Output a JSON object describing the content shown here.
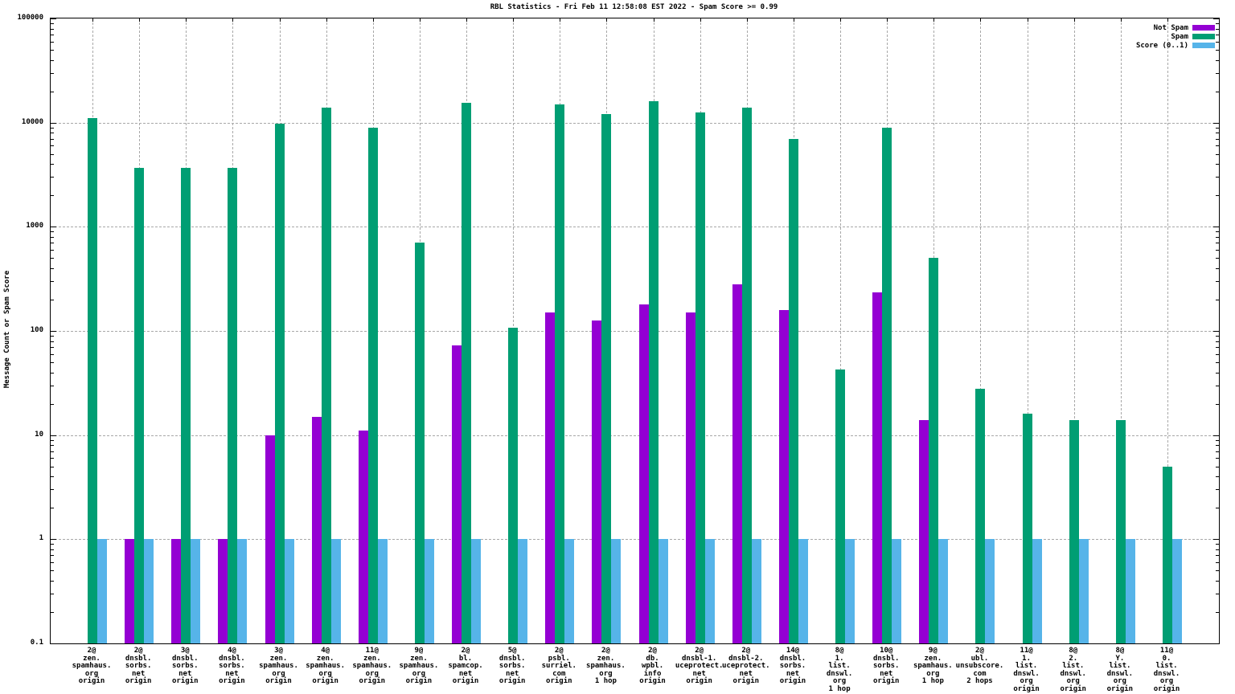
{
  "title": "RBL Statistics - Fri Feb 11 12:58:08 EST 2022 - Spam Score >= 0.99",
  "legend": [
    {
      "label": "Not Spam",
      "color": "#9400d3"
    },
    {
      "label": "Spam",
      "color": "#009e73"
    },
    {
      "label": "Score (0..1)",
      "color": "#56b4e9"
    }
  ],
  "chart_data": {
    "type": "bar",
    "title": "RBL Statistics - Fri Feb 11 12:58:08 EST 2022 - Spam Score >= 0.99",
    "xlabel": "",
    "ylabel": "Message Count or Spam Score",
    "y_scale": "log10",
    "ylim": [
      0.1,
      100000
    ],
    "y_ticks": [
      "100000",
      "10000",
      "1000",
      "100",
      "10",
      "1",
      "0.1"
    ],
    "grid": "dashed-gray-both-axes",
    "legend_position": "top-right-inside",
    "categories": [
      {
        "label": "2@ zen.spamhaus.org origin",
        "lines": [
          "2@",
          "zen.",
          "spamhaus.",
          "org",
          "origin"
        ]
      },
      {
        "label": "2@ dnsbl.sorbs.net origin",
        "lines": [
          "2@",
          "dnsbl.",
          "sorbs.",
          "net",
          "origin"
        ]
      },
      {
        "label": "3@ dnsbl.sorbs.net origin",
        "lines": [
          "3@",
          "dnsbl.",
          "sorbs.",
          "net",
          "origin"
        ]
      },
      {
        "label": "4@ dnsbl.sorbs.net origin",
        "lines": [
          "4@",
          "dnsbl.",
          "sorbs.",
          "net",
          "origin"
        ]
      },
      {
        "label": "3@ zen.spamhaus.org origin",
        "lines": [
          "3@",
          "zen.",
          "spamhaus.",
          "org",
          "origin"
        ]
      },
      {
        "label": "4@ zen.spamhaus.org origin",
        "lines": [
          "4@",
          "zen.",
          "spamhaus.",
          "org",
          "origin"
        ]
      },
      {
        "label": "11@ zen.spamhaus.org origin",
        "lines": [
          "11@",
          "zen.",
          "spamhaus.",
          "org",
          "origin"
        ]
      },
      {
        "label": "9@ zen.spamhaus.org origin",
        "lines": [
          "9@",
          "zen.",
          "spamhaus.",
          "org",
          "origin"
        ]
      },
      {
        "label": "2@ bl.spamcop.net origin",
        "lines": [
          "2@",
          "bl.",
          "spamcop.",
          "net",
          "origin"
        ]
      },
      {
        "label": "5@ dnsbl.sorbs.net origin",
        "lines": [
          "5@",
          "dnsbl.",
          "sorbs.",
          "net",
          "origin"
        ]
      },
      {
        "label": "2@ psbl.surriel.com origin",
        "lines": [
          "2@",
          "psbl.",
          "surriel.",
          "com",
          "origin"
        ]
      },
      {
        "label": "2@ zen.spamhaus.org 1 hop",
        "lines": [
          "2@",
          "zen.",
          "spamhaus.",
          "org",
          "1 hop"
        ]
      },
      {
        "label": "2@ db.wpbl.info origin",
        "lines": [
          "2@",
          "db.",
          "wpbl.",
          "info",
          "origin"
        ]
      },
      {
        "label": "2@ dnsbl-1.uceprotect.net origin",
        "lines": [
          "2@",
          "dnsbl-1.",
          "uceprotect.",
          "net",
          "origin"
        ]
      },
      {
        "label": "2@ dnsbl-2.uceprotect.net origin",
        "lines": [
          "2@",
          "dnsbl-2.",
          "uceprotect.",
          "net",
          "origin"
        ]
      },
      {
        "label": "14@ dnsbl.sorbs.net origin",
        "lines": [
          "14@",
          "dnsbl.",
          "sorbs.",
          "net",
          "origin"
        ]
      },
      {
        "label": "8@ 1.list.dnswl.org 1 hop",
        "lines": [
          "8@",
          "1.",
          "list.",
          "dnswl.",
          "org",
          "1 hop"
        ]
      },
      {
        "label": "10@ dnsbl.sorbs.net origin",
        "lines": [
          "10@",
          "dnsbl.",
          "sorbs.",
          "net",
          "origin"
        ]
      },
      {
        "label": "9@ zen.spamhaus.org 1 hop",
        "lines": [
          "9@",
          "zen.",
          "spamhaus.",
          "org",
          "1 hop"
        ]
      },
      {
        "label": "2@ ubl.unsubscore.com 2 hops",
        "lines": [
          "2@",
          "ubl.",
          "unsubscore.",
          "com",
          "2 hops"
        ]
      },
      {
        "label": "11@ 1.list.dnswl.org origin",
        "lines": [
          "11@",
          "1.",
          "list.",
          "dnswl.",
          "org",
          "origin"
        ]
      },
      {
        "label": "8@ 2.list.dnswl.org origin",
        "lines": [
          "8@",
          "2.",
          "list.",
          "dnswl.",
          "org",
          "origin"
        ]
      },
      {
        "label": "8@ Y.list.dnswl.org origin",
        "lines": [
          "8@",
          "Y.",
          "list.",
          "dnswl.",
          "org",
          "origin"
        ]
      },
      {
        "label": "11@ 0.list.dnswl.org origin",
        "lines": [
          "11@",
          "0.",
          "list.",
          "dnswl.",
          "org",
          "origin"
        ]
      }
    ],
    "series": [
      {
        "name": "Not Spam",
        "color": "#9400d3",
        "values": [
          null,
          1,
          1,
          1,
          10,
          15,
          11,
          null,
          72,
          null,
          150,
          125,
          180,
          150,
          280,
          160,
          null,
          235,
          14,
          null,
          null,
          null,
          null,
          null
        ]
      },
      {
        "name": "Spam",
        "color": "#009e73",
        "values": [
          11000,
          3700,
          3700,
          3700,
          9800,
          14000,
          8900,
          700,
          15500,
          108,
          15000,
          12000,
          16000,
          12500,
          14000,
          7000,
          43,
          8900,
          500,
          28,
          16,
          14,
          14,
          5
        ]
      },
      {
        "name": "Score (0..1)",
        "color": "#56b4e9",
        "values": [
          1,
          1,
          1,
          1,
          1,
          1,
          1,
          1,
          1,
          1,
          1,
          1,
          1,
          1,
          1,
          1,
          1,
          1,
          1,
          1,
          1,
          1,
          1,
          1
        ]
      }
    ]
  }
}
